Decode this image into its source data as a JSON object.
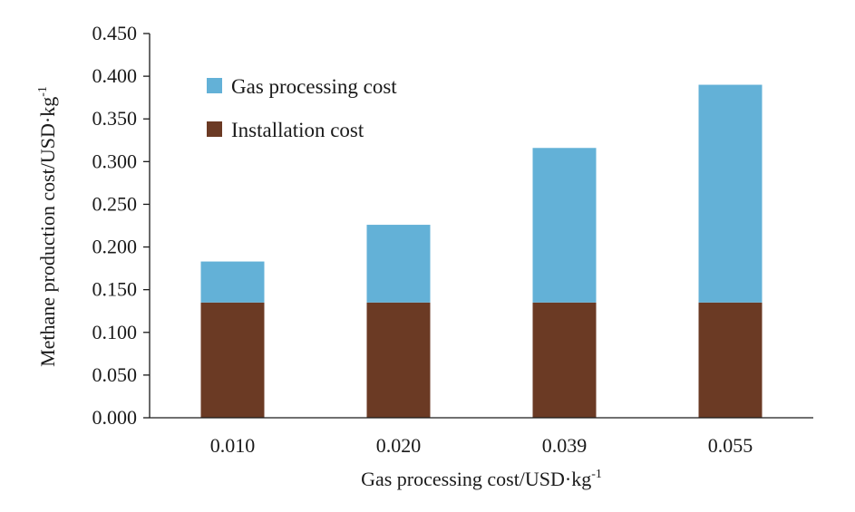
{
  "chart_data": {
    "type": "bar",
    "stacked": true,
    "categories": [
      "0.010",
      "0.020",
      "0.039",
      "0.055"
    ],
    "series": [
      {
        "name": "Installation cost",
        "color": "#6b3a24",
        "values": [
          0.135,
          0.135,
          0.135,
          0.135
        ]
      },
      {
        "name": "Gas processing cost",
        "color": "#63b1d7",
        "values": [
          0.048,
          0.091,
          0.181,
          0.255
        ]
      }
    ],
    "title": "",
    "xlabel": "Gas processing cost/USD·kg",
    "xlabel_sup": "-1",
    "ylabel": "Methane production cost/USD·kg",
    "ylabel_sup": "-1",
    "ylim": [
      0,
      0.45
    ],
    "yticks": [
      "0.000",
      "0.050",
      "0.100",
      "0.150",
      "0.200",
      "0.250",
      "0.300",
      "0.350",
      "0.400",
      "0.450"
    ],
    "grid": false,
    "legend": {
      "position": "top-left",
      "entries": [
        {
          "label": "Gas processing cost",
          "color": "#63b1d7"
        },
        {
          "label": "Installation cost",
          "color": "#6b3a24"
        }
      ]
    }
  }
}
